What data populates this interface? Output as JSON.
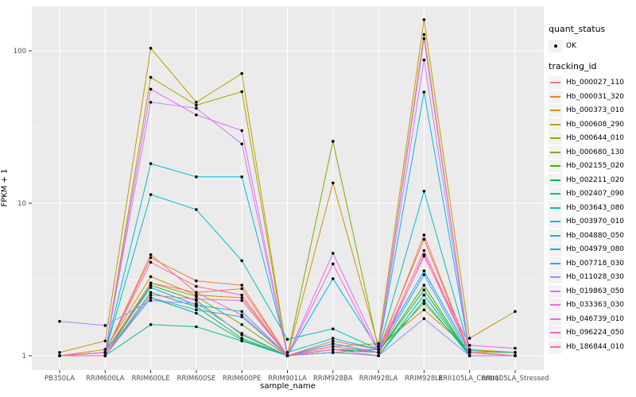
{
  "figure": {
    "background": "#FFFFFF",
    "panel_background": "#EBEBEB",
    "grid_major_color": "#FFFFFF",
    "grid_minor_color": "#F5F5F5",
    "tick_mark_color": "#333333",
    "tick_label_color": "#4D4D4D",
    "point_color": "#000000"
  },
  "legend": {
    "quant_status": {
      "title": "quant_status",
      "items": [
        {
          "label": "OK",
          "symbol": "point"
        }
      ]
    },
    "tracking_id_title": "tracking_id"
  },
  "chart_data": {
    "type": "line",
    "title": "",
    "xlabel": "sample_name",
    "ylabel": "FPKM + 1",
    "y_scale": "log10",
    "y_ticks": [
      1,
      10,
      100
    ],
    "y_minor_ticks": [
      3.162,
      31.62
    ],
    "ylim": [
      0.81,
      191
    ],
    "grid": true,
    "legend_position": "right",
    "marker": "black-point",
    "categories": [
      "PB350LA",
      "RRIM600LA",
      "RRIM600LE",
      "RRIM600SE",
      "RRIM600PE",
      "RRIM901LA",
      "RRIM928BA",
      "RRIM928LA",
      "RRIM928LE",
      "RRII105LA_Control",
      "RRII105LA_Stressed"
    ],
    "series": [
      {
        "name": "Hb_000027_110",
        "color": "#F8766D",
        "values": [
          1.0,
          1.05,
          4.6,
          2.6,
          2.75,
          1.0,
          1.2,
          1.05,
          6.2,
          1.05,
          1.0
        ]
      },
      {
        "name": "Hb_000031_320",
        "color": "#EA8331",
        "values": [
          1.0,
          1.05,
          4.4,
          3.1,
          2.9,
          1.0,
          1.25,
          1.1,
          5.8,
          1.05,
          1.0
        ]
      },
      {
        "name": "Hb_000373_010",
        "color": "#D89000",
        "values": [
          1.0,
          1.1,
          3.3,
          2.5,
          2.4,
          1.0,
          13.6,
          1.15,
          2.0,
          1.1,
          1.05
        ]
      },
      {
        "name": "Hb_000608_290",
        "color": "#C09B00",
        "values": [
          1.05,
          1.25,
          104,
          46,
          71,
          1.0,
          1.15,
          1.2,
          160,
          1.3,
          1.95
        ]
      },
      {
        "name": "Hb_000644_010",
        "color": "#A3A500",
        "values": [
          1.0,
          1.05,
          67,
          44,
          54,
          1.0,
          1.05,
          1.1,
          128,
          1.05,
          1.05
        ]
      },
      {
        "name": "Hb_000680_130",
        "color": "#7CAE00",
        "values": [
          1.0,
          1.05,
          3.0,
          2.45,
          1.6,
          1.0,
          25.5,
          1.1,
          2.2,
          1.05,
          1.0
        ]
      },
      {
        "name": "Hb_002155_020",
        "color": "#39B600",
        "values": [
          1.0,
          1.0,
          2.9,
          2.3,
          1.37,
          1.0,
          1.1,
          1.05,
          2.9,
          1.0,
          1.0
        ]
      },
      {
        "name": "Hb_002211_020",
        "color": "#00BB4E",
        "values": [
          1.0,
          1.0,
          2.6,
          2.1,
          1.3,
          1.0,
          1.1,
          1.05,
          2.7,
          1.0,
          1.0
        ]
      },
      {
        "name": "Hb_002407_090",
        "color": "#00BF7D",
        "values": [
          1.0,
          1.0,
          2.4,
          1.9,
          1.27,
          1.0,
          1.05,
          1.0,
          2.5,
          1.0,
          1.0
        ]
      },
      {
        "name": "Hb_003643_080",
        "color": "#00C1A3",
        "values": [
          1.0,
          1.0,
          1.6,
          1.55,
          1.25,
          1.0,
          1.05,
          1.0,
          2.3,
          1.0,
          1.0
        ]
      },
      {
        "name": "Hb_003970_010",
        "color": "#00BFC4",
        "values": [
          1.0,
          1.05,
          11.4,
          9.1,
          4.2,
          1.28,
          1.5,
          1.1,
          12.0,
          1.08,
          1.05
        ]
      },
      {
        "name": "Hb_004880_050",
        "color": "#00BAE0",
        "values": [
          1.0,
          1.05,
          18.2,
          14.9,
          14.9,
          1.05,
          1.3,
          1.1,
          53.6,
          1.05,
          1.0
        ]
      },
      {
        "name": "Hb_004979_080",
        "color": "#00B0F6",
        "values": [
          1.0,
          1.05,
          2.8,
          2.15,
          1.95,
          1.0,
          3.2,
          1.1,
          3.6,
          1.05,
          1.0
        ]
      },
      {
        "name": "Hb_007718_030",
        "color": "#35A2FF",
        "values": [
          1.0,
          1.0,
          2.4,
          2.0,
          1.8,
          1.0,
          1.2,
          1.05,
          3.4,
          1.0,
          1.0
        ]
      },
      {
        "name": "Hb_011028_030",
        "color": "#9590FF",
        "values": [
          1.68,
          1.58,
          2.3,
          2.2,
          1.4,
          1.0,
          1.05,
          1.0,
          1.75,
          1.0,
          1.0
        ]
      },
      {
        "name": "Hb_019863_050",
        "color": "#C77CFF",
        "values": [
          1.0,
          1.05,
          46,
          42,
          24.5,
          1.0,
          1.1,
          1.1,
          87,
          1.05,
          1.0
        ]
      },
      {
        "name": "Hb_033363_030",
        "color": "#E76BF3",
        "values": [
          1.0,
          1.05,
          56,
          38,
          30,
          1.0,
          4.7,
          1.1,
          120,
          1.05,
          1.0
        ]
      },
      {
        "name": "Hb_046739_010",
        "color": "#FA62DB",
        "values": [
          1.0,
          1.0,
          2.5,
          2.35,
          2.3,
          1.0,
          4.0,
          1.05,
          4.5,
          1.17,
          1.12
        ]
      },
      {
        "name": "Hb_096224_050",
        "color": "#FF62BC",
        "values": [
          1.0,
          1.05,
          4.1,
          2.85,
          2.5,
          1.0,
          1.15,
          1.05,
          4.9,
          1.05,
          1.0
        ]
      },
      {
        "name": "Hb_186844_010",
        "color": "#FF6A98",
        "values": [
          1.0,
          1.0,
          3.0,
          2.6,
          1.85,
          1.0,
          1.1,
          1.0,
          4.6,
          1.05,
          1.0
        ]
      }
    ]
  }
}
